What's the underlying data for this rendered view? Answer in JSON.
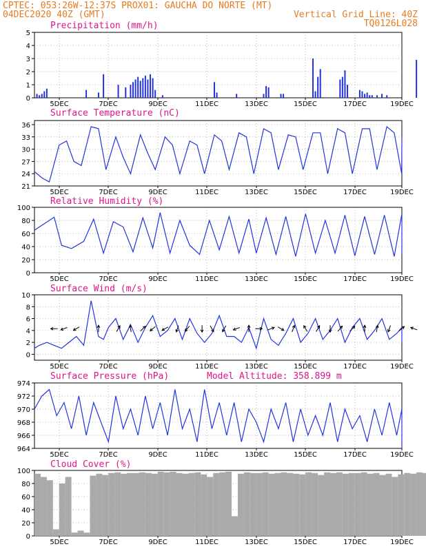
{
  "header": {
    "line1": "CPTEC:   053:26W-12:37S   PROX01: GAUCHA DO NORTE (MT)",
    "line2_left": "04DEC2020 40Z (GMT)",
    "line2_right": "Vertical Grid Line: 40Z",
    "line3_right": "TQ0126L028"
  },
  "colors": {
    "header": "#e87a1e",
    "title": "#e0148c",
    "series": "#2233dd",
    "cloud": "#aaaaaa"
  },
  "chart_data": [
    {
      "type": "bar",
      "title": "Precipitation (mm/h)",
      "x_tick_labels": [
        "5DEC",
        "7DEC",
        "9DEC",
        "11DEC",
        "13DEC",
        "15DEC",
        "17DEC",
        "19DEC"
      ],
      "ylim": [
        0,
        5
      ],
      "y_ticks": [
        0,
        1,
        2,
        3,
        4,
        5
      ],
      "grid": true,
      "x_days": [
        0.1,
        0.2,
        0.3,
        0.4,
        0.5,
        2.1,
        2.6,
        2.8,
        3.4,
        3.7,
        3.9,
        4.0,
        4.1,
        4.2,
        4.3,
        4.4,
        4.5,
        4.6,
        4.7,
        4.8,
        4.9,
        5.2,
        7.3,
        7.4,
        8.2,
        9.3,
        9.4,
        9.5,
        10.0,
        10.1,
        11.3,
        11.4,
        11.5,
        11.6,
        12.4,
        12.5,
        12.6,
        12.7,
        13.2,
        13.3,
        13.4,
        13.5,
        13.6,
        13.7,
        13.9,
        14.1,
        14.3,
        15.5,
        16.5,
        16.7,
        17.0,
        17.1,
        17.2,
        17.4,
        17.5,
        17.6,
        17.7,
        17.8,
        17.9
      ],
      "values": [
        0.3,
        0.2,
        0.3,
        0.5,
        0.7,
        0.6,
        0.4,
        1.8,
        1.0,
        0.8,
        1.0,
        1.2,
        1.4,
        1.6,
        1.3,
        1.5,
        1.7,
        1.4,
        1.8,
        1.5,
        0.6,
        0.2,
        1.2,
        0.4,
        0.3,
        0.3,
        0.9,
        0.8,
        0.3,
        0.3,
        3.0,
        0.5,
        1.6,
        2.2,
        1.4,
        1.6,
        2.1,
        1.0,
        0.6,
        0.5,
        0.3,
        0.4,
        0.2,
        0.2,
        0.2,
        0.3,
        0.2,
        2.9,
        0.5,
        0.5,
        0.3,
        0.8,
        0.6,
        0.3,
        0.4,
        0.8,
        0.3,
        0.2,
        0.7
      ]
    },
    {
      "type": "line",
      "title": "Surface Temperature (nC)",
      "x_tick_labels": [
        "5DEC",
        "7DEC",
        "9DEC",
        "11DEC",
        "13DEC",
        "15DEC",
        "17DEC",
        "19DEC"
      ],
      "ylim": [
        21,
        37
      ],
      "y_ticks": [
        21,
        24,
        27,
        30,
        33,
        36
      ],
      "grid": true,
      "x_days": [
        0.0,
        0.3,
        0.6,
        1.0,
        1.3,
        1.6,
        1.9,
        2.3,
        2.6,
        2.9,
        3.3,
        3.6,
        3.9,
        4.3,
        4.6,
        4.9,
        5.3,
        5.6,
        5.9,
        6.3,
        6.6,
        6.9,
        7.3,
        7.6,
        7.9,
        8.3,
        8.6,
        8.9,
        9.3,
        9.6,
        9.9,
        10.3,
        10.6,
        10.9,
        11.3,
        11.6,
        11.9,
        12.3,
        12.6,
        12.9,
        13.3,
        13.6,
        13.9,
        14.3,
        14.6,
        14.9,
        15.3,
        15.6,
        15.9
      ],
      "values": [
        24.5,
        23,
        22,
        31,
        32,
        27,
        26,
        35.5,
        35,
        25,
        33,
        28,
        24,
        33.5,
        29,
        25,
        33,
        31,
        24,
        32,
        31,
        24,
        33.5,
        32,
        25,
        34,
        33,
        24,
        35,
        34,
        25,
        33.5,
        33,
        25,
        34,
        34,
        24,
        35,
        34,
        24,
        35,
        35,
        25,
        35.5,
        34,
        24,
        32,
        33,
        33
      ]
    },
    {
      "type": "line",
      "title": "Relative Humidity (%)",
      "x_tick_labels": [
        "5DEC",
        "7DEC",
        "9DEC",
        "11DEC",
        "13DEC",
        "15DEC",
        "17DEC",
        "19DEC"
      ],
      "ylim": [
        0,
        100
      ],
      "y_ticks": [
        0,
        20,
        40,
        60,
        80,
        100
      ],
      "grid": true,
      "x_days": [
        0.0,
        0.4,
        0.8,
        1.1,
        1.5,
        2.0,
        2.4,
        2.8,
        3.2,
        3.6,
        4.0,
        4.4,
        4.8,
        5.1,
        5.5,
        5.9,
        6.3,
        6.7,
        7.1,
        7.5,
        7.9,
        8.3,
        8.7,
        9.0,
        9.4,
        9.8,
        10.2,
        10.6,
        11.0,
        11.4,
        11.8,
        12.2,
        12.6,
        13.0,
        13.4,
        13.8,
        14.2,
        14.6,
        15.0,
        15.4,
        15.7,
        16.0
      ],
      "values": [
        65,
        75,
        85,
        42,
        37,
        48,
        82,
        30,
        78,
        70,
        32,
        84,
        38,
        92,
        30,
        80,
        42,
        28,
        80,
        35,
        86,
        30,
        82,
        30,
        84,
        28,
        86,
        25,
        90,
        30,
        80,
        30,
        88,
        26,
        86,
        28,
        88,
        25,
        90,
        28,
        82,
        37
      ]
    },
    {
      "type": "line",
      "title": "Surface Wind (m/s)",
      "x_tick_labels": [
        "5DEC",
        "7DEC",
        "9DEC",
        "11DEC",
        "13DEC",
        "15DEC",
        "17DEC",
        "19DEC"
      ],
      "ylim": [
        -1,
        10
      ],
      "y_ticks": [
        0,
        2,
        4,
        6,
        8,
        10
      ],
      "grid": true,
      "x_days": [
        0.0,
        0.2,
        0.5,
        0.8,
        1.1,
        1.4,
        1.7,
        2.0,
        2.3,
        2.6,
        2.8,
        3.0,
        3.3,
        3.6,
        3.9,
        4.2,
        4.5,
        4.8,
        5.1,
        5.4,
        5.7,
        6.0,
        6.3,
        6.6,
        6.9,
        7.2,
        7.5,
        7.8,
        8.1,
        8.4,
        8.7,
        9.0,
        9.3,
        9.6,
        9.9,
        10.2,
        10.5,
        10.8,
        11.1,
        11.4,
        11.7,
        12.0,
        12.3,
        12.6,
        12.9,
        13.2,
        13.5,
        13.8,
        14.1,
        14.4,
        14.7,
        15.0,
        15.3,
        15.6,
        15.9,
        16.0
      ],
      "values": [
        1.0,
        1.5,
        2.0,
        1.5,
        1.0,
        2.0,
        3.0,
        1.5,
        9.0,
        3.0,
        2.5,
        4.5,
        6.0,
        2.5,
        5.0,
        2.0,
        4.5,
        6.5,
        3.0,
        4.0,
        6.0,
        2.5,
        6.0,
        3.5,
        2.0,
        3.5,
        6.5,
        3.0,
        3.0,
        2.0,
        4.5,
        1.0,
        6.0,
        2.5,
        1.5,
        3.5,
        6.0,
        2.0,
        3.5,
        6.0,
        2.5,
        4.0,
        6.0,
        2.0,
        4.5,
        6.0,
        2.5,
        4.0,
        6.0,
        2.5,
        3.5,
        4.5,
        2.0,
        3.0,
        4.5,
        2.5
      ],
      "arrow_days": [
        0.8,
        1.2,
        1.7,
        2.6,
        3.4,
        3.9,
        4.4,
        4.8,
        5.3,
        5.8,
        6.2,
        6.8,
        7.2,
        7.7,
        8.2,
        8.7,
        9.1,
        9.6,
        10.0,
        10.5,
        11.0,
        11.5,
        12.0,
        12.4,
        12.9,
        13.4,
        13.9,
        14.4,
        14.9,
        15.4
      ],
      "arrow_dirs_deg": [
        180,
        200,
        210,
        90,
        60,
        100,
        45,
        220,
        210,
        250,
        230,
        270,
        300,
        240,
        200,
        90,
        0,
        20,
        330,
        70,
        120,
        60,
        270,
        50,
        45,
        90,
        80,
        250,
        40,
        160
      ]
    },
    {
      "type": "line",
      "title": "Surface Pressure (hPa)",
      "annotation": "Model Altitude: 358.899  m",
      "x_tick_labels": [
        "5DEC",
        "7DEC",
        "9DEC",
        "11DEC",
        "13DEC",
        "15DEC",
        "17DEC",
        "19DEC"
      ],
      "ylim": [
        964,
        974
      ],
      "y_ticks": [
        964,
        966,
        968,
        970,
        972,
        974
      ],
      "grid": true,
      "x_days": [
        0.0,
        0.3,
        0.6,
        0.9,
        1.2,
        1.5,
        1.8,
        2.1,
        2.4,
        2.7,
        3.0,
        3.3,
        3.6,
        3.9,
        4.2,
        4.5,
        4.8,
        5.1,
        5.4,
        5.7,
        6.0,
        6.3,
        6.6,
        6.9,
        7.2,
        7.5,
        7.8,
        8.1,
        8.4,
        8.7,
        9.0,
        9.3,
        9.6,
        9.9,
        10.2,
        10.5,
        10.8,
        11.1,
        11.4,
        11.7,
        12.0,
        12.3,
        12.6,
        12.9,
        13.2,
        13.5,
        13.8,
        14.1,
        14.4,
        14.7,
        15.0,
        15.3,
        15.6,
        15.9,
        16.0
      ],
      "values": [
        970,
        972,
        973,
        969,
        971,
        967,
        972,
        966,
        971,
        968,
        965,
        972,
        967,
        970,
        966,
        972,
        967,
        971,
        966,
        973,
        967,
        970,
        965,
        973,
        967,
        971,
        966,
        971,
        965,
        970,
        968,
        965,
        970,
        967,
        971,
        965,
        970,
        966,
        969,
        966,
        971,
        965,
        970,
        967,
        969,
        965,
        970,
        966,
        971,
        966,
        970,
        964,
        970,
        966,
        967
      ]
    },
    {
      "type": "bar",
      "title": "Cloud Cover (%)",
      "x_tick_labels": [
        "5DEC",
        "7DEC",
        "9DEC",
        "11DEC",
        "13DEC",
        "15DEC",
        "17DEC",
        "19DEC"
      ],
      "ylim": [
        0,
        100
      ],
      "y_ticks": [
        0,
        20,
        40,
        60,
        80,
        100
      ],
      "grid": true,
      "x_days": [
        0.0,
        0.25,
        0.5,
        0.75,
        1.0,
        1.25,
        1.5,
        1.75,
        2.0,
        2.25,
        2.5,
        2.75,
        3.0,
        3.25,
        3.5,
        3.75,
        4.0,
        4.25,
        4.5,
        4.75,
        5.0,
        5.25,
        5.5,
        5.75,
        6.0,
        6.25,
        6.5,
        6.75,
        7.0,
        7.25,
        7.5,
        7.75,
        8.0,
        8.25,
        8.5,
        8.75,
        9.0,
        9.25,
        9.5,
        9.75,
        10.0,
        10.25,
        10.5,
        10.75,
        11.0,
        11.25,
        11.5,
        11.75,
        12.0,
        12.25,
        12.5,
        12.75,
        13.0,
        13.25,
        13.5,
        13.75,
        14.0,
        14.25,
        14.5,
        14.75,
        15.0,
        15.25,
        15.5,
        15.75,
        16.0
      ],
      "values": [
        95,
        90,
        85,
        10,
        80,
        90,
        5,
        8,
        5,
        92,
        95,
        93,
        96,
        97,
        95,
        96,
        96,
        97,
        96,
        95,
        98,
        97,
        98,
        96,
        95,
        96,
        97,
        94,
        90,
        96,
        97,
        98,
        30,
        95,
        97,
        96,
        96,
        97,
        95,
        96,
        97,
        96,
        95,
        94,
        97,
        96,
        93,
        97,
        96,
        97,
        95,
        96,
        96,
        97,
        95,
        96,
        93,
        95,
        90,
        94,
        96,
        95,
        97,
        96,
        97
      ]
    }
  ]
}
